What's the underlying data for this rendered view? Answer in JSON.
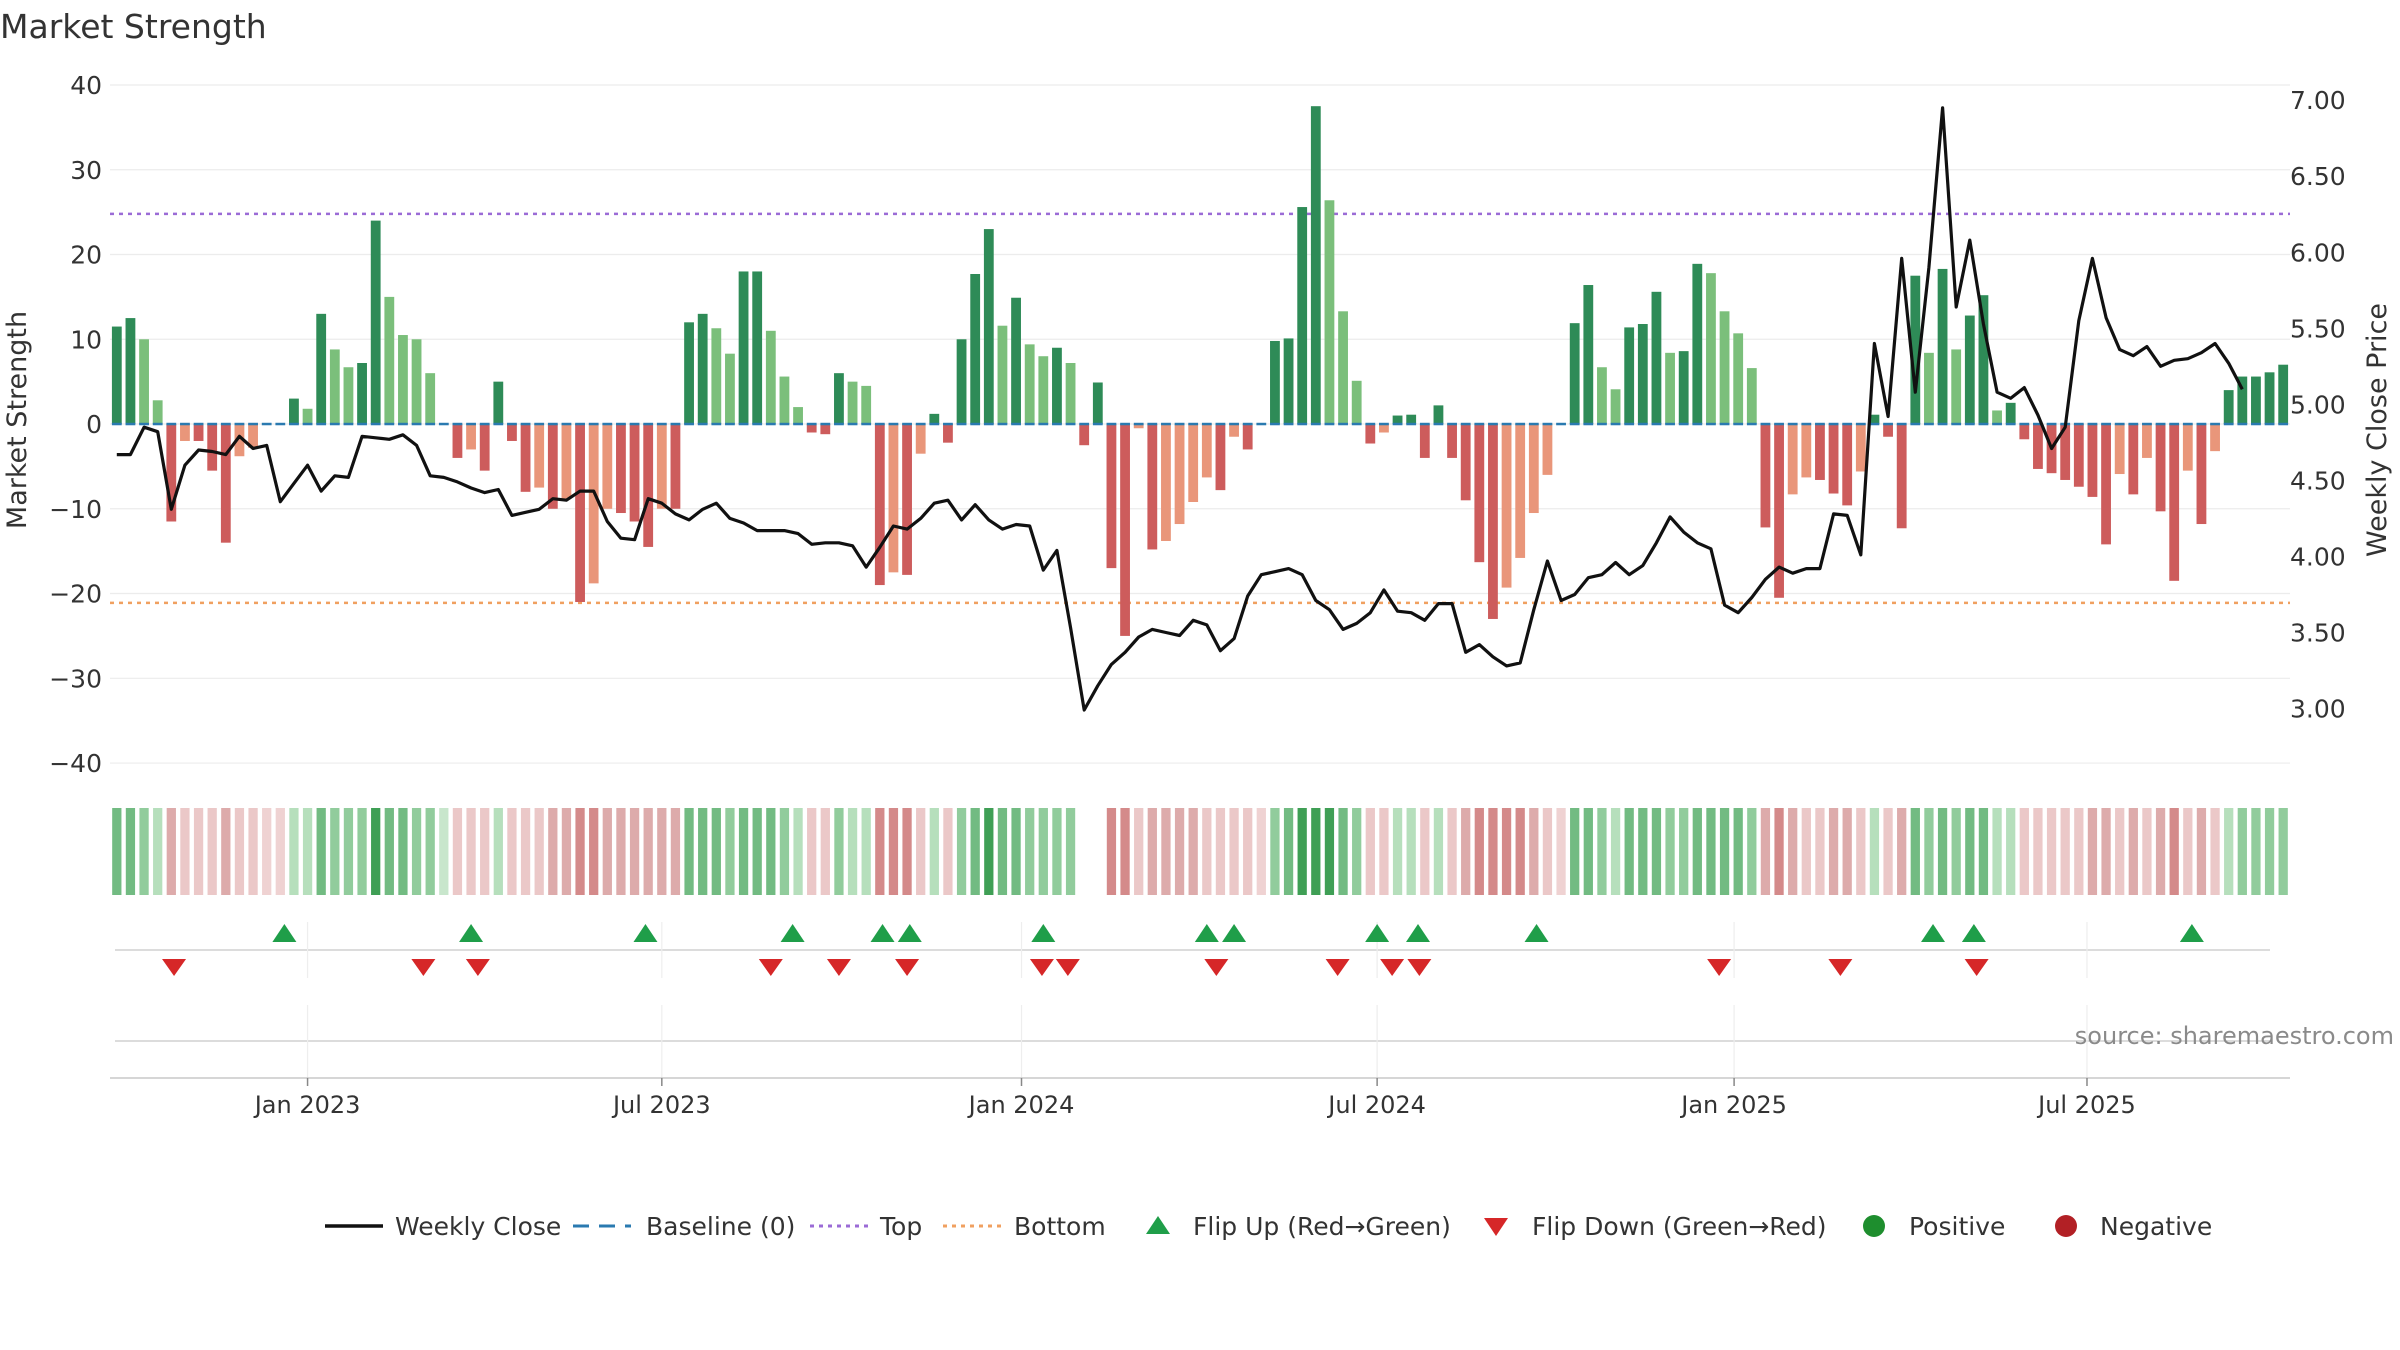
{
  "chart_data": {
    "type": "bar",
    "title": "Market Strength",
    "ylabel": "Market Strength",
    "y2label": "Weekly Close Price",
    "ylim": [
      -42,
      40
    ],
    "y2lim": [
      2.53,
      7.1
    ],
    "yticks": [
      40,
      30,
      20,
      10,
      0,
      -10,
      -20,
      -30,
      -40
    ],
    "y2ticks": [
      "7.00",
      "6.50",
      "6.00",
      "5.50",
      "5.00",
      "4.50",
      "4.00",
      "3.50",
      "3.00"
    ],
    "top_level": 24.8,
    "bottom_level": -21.1,
    "x_ticks": [
      {
        "label": "Jan 2023",
        "week": 14
      },
      {
        "label": "Jul 2023",
        "week": 40
      },
      {
        "label": "Jan 2024",
        "week": 66.4
      },
      {
        "label": "Jul 2024",
        "week": 92.5
      },
      {
        "label": "Jan 2025",
        "week": 118.7
      },
      {
        "label": "Jul 2025",
        "week": 144.6
      }
    ],
    "strength": [
      11.5,
      12.5,
      10,
      2.8,
      -11.5,
      -2,
      -2,
      -5.5,
      -14,
      -3.8,
      -2.8,
      0,
      0,
      3,
      1.8,
      13,
      8.8,
      6.7,
      7.2,
      24,
      15,
      10.5,
      10,
      6,
      0,
      -4,
      -3,
      -5.5,
      5,
      -2,
      -8,
      -7.5,
      -10,
      -8.8,
      -21,
      -18.8,
      -10,
      -10.5,
      -11.5,
      -14.5,
      -10,
      -10,
      12,
      13,
      11.3,
      8.3,
      18,
      18,
      11,
      5.6,
      2,
      -1,
      -1.2,
      6,
      5,
      4.5,
      -19,
      -17.5,
      -17.8,
      -3.5,
      1.2,
      -2.2,
      10,
      17.7,
      23,
      11.6,
      14.9,
      9.4,
      8,
      9,
      7.2,
      -2.5,
      4.9,
      -17,
      -25,
      -0.5,
      -14.8,
      -13.8,
      -11.8,
      -9.2,
      -6.3,
      -7.8,
      -1.5,
      -3,
      0,
      9.8,
      10.1,
      25.6,
      37.5,
      26.4,
      13.3,
      5.1,
      -2.3,
      -1,
      1,
      1.1,
      -4,
      2.2,
      -4,
      -9,
      -16.3,
      -23,
      -19.3,
      -15.8,
      -10.5,
      -6,
      0,
      11.9,
      16.4,
      6.7,
      4.1,
      11.4,
      11.8,
      15.6,
      8.4,
      8.6,
      18.9,
      17.8,
      13.3,
      10.7,
      6.6,
      -12.2,
      -20.5,
      -8.3,
      -6.3,
      -6.6,
      -8.2,
      -9.6,
      -5.6,
      1.1,
      -1.5,
      -12.3,
      17.5,
      8.4,
      18.3,
      8.8,
      12.8,
      15.2,
      1.6,
      2.5,
      -1.8,
      -5.3,
      -5.8,
      -6.6,
      -7.4,
      -8.6,
      -14.2,
      -5.9,
      -8.3,
      -4,
      -10.3,
      -18.5,
      -5.5,
      -11.8,
      -3.2,
      4,
      5.6,
      5.6,
      6.1,
      7
    ],
    "close_y": [
      4.67,
      4.67,
      4.85,
      4.82,
      4.31,
      4.6,
      4.7,
      4.69,
      4.67,
      4.79,
      4.71,
      4.73,
      4.36,
      4.48,
      4.6,
      4.43,
      4.53,
      4.52,
      4.79,
      4.78,
      4.77,
      4.8,
      4.73,
      4.53,
      4.52,
      4.49,
      4.45,
      4.42,
      4.44,
      4.27,
      4.29,
      4.31,
      4.38,
      4.37,
      4.43,
      4.43,
      4.23,
      4.12,
      4.11,
      4.38,
      4.35,
      4.28,
      4.24,
      4.31,
      4.35,
      4.25,
      4.22,
      4.17,
      4.17,
      4.17,
      4.15,
      4.08,
      4.09,
      4.09,
      4.07,
      3.93,
      4.06,
      4.2,
      4.18,
      4.25,
      4.35,
      4.37,
      4.24,
      4.34,
      4.24,
      4.18,
      4.21,
      4.2,
      3.91,
      4.04,
      3.53,
      2.99,
      3.15,
      3.29,
      3.37,
      3.47,
      3.52,
      3.5,
      3.48,
      3.58,
      3.55,
      3.38,
      3.46,
      3.74,
      3.88,
      3.9,
      3.92,
      3.88,
      3.71,
      3.65,
      3.52,
      3.56,
      3.63,
      3.78,
      3.64,
      3.63,
      3.58,
      3.69,
      3.69,
      3.37,
      3.42,
      3.34,
      3.28,
      3.3,
      3.65,
      3.97,
      3.71,
      3.75,
      3.86,
      3.88,
      3.96,
      3.88,
      3.94,
      4.09,
      4.26,
      4.16,
      4.09,
      4.05,
      3.68,
      3.63,
      3.73,
      3.85,
      3.93,
      3.89,
      3.92,
      3.92,
      4.28,
      4.27,
      4.01,
      5.4,
      4.92,
      5.96,
      5.08,
      5.9,
      6.95,
      5.64,
      6.08,
      5.53,
      5.08,
      5.04,
      5.11,
      4.93,
      4.71,
      4.85,
      5.55,
      5.96,
      5.57,
      5.36,
      5.32,
      5.38,
      5.25,
      5.29,
      5.3,
      5.34,
      5.4,
      5.27,
      5.1
    ],
    "strip_gaps": [
      71,
      72
    ],
    "flip_up_weeks": [
      12.3,
      26,
      38.8,
      49.6,
      56.2,
      58.2,
      68,
      80,
      82,
      92.5,
      95.5,
      104.2,
      133.3,
      136.3,
      152.3
    ],
    "flip_down_weeks": [
      4.2,
      22.5,
      26.5,
      48,
      53,
      58,
      67.9,
      69.8,
      80.7,
      89.6,
      93.6,
      95.6,
      117.6,
      126.5,
      136.5
    ],
    "source": "source: sharemaestro.com",
    "legend": [
      {
        "label": "Weekly Close",
        "kind": "line",
        "color": "#111111"
      },
      {
        "label": "Baseline (0)",
        "kind": "dash",
        "color": "#2a7ab0"
      },
      {
        "label": "Top",
        "kind": "dot",
        "color": "#9b6bd6"
      },
      {
        "label": "Bottom",
        "kind": "dot",
        "color": "#f0a060"
      },
      {
        "label": "Flip Up (Red→Green)",
        "kind": "tri-up",
        "color": "#1f9e49"
      },
      {
        "label": "Flip Down (Green→Red)",
        "kind": "tri-down",
        "color": "#d62728"
      },
      {
        "label": "Positive",
        "kind": "dot-marker",
        "color": "#1e8e2e"
      },
      {
        "label": "Negative",
        "kind": "dot-marker",
        "color": "#b22025"
      }
    ]
  }
}
